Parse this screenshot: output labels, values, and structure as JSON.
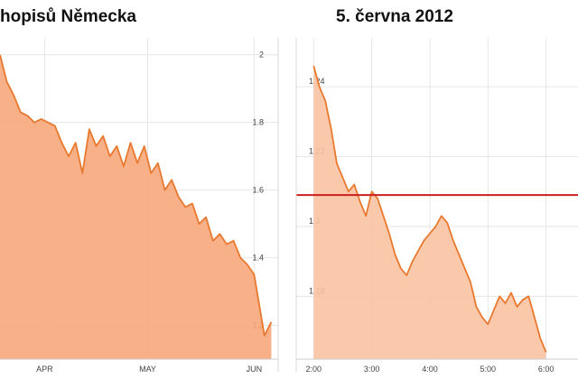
{
  "chart_data": [
    {
      "type": "area",
      "title": "hopisů Německa",
      "xlabel": "",
      "ylabel": "",
      "x_ticks": [
        "APR",
        "MAY",
        "JUN"
      ],
      "y_ticks": [
        "2",
        "1.8",
        "1.6",
        "1.4",
        "1.2"
      ],
      "ylim": [
        1.1,
        2.05
      ],
      "grid": true,
      "fill_color": "#f6a77a",
      "line_color": "#e8792f",
      "series": [
        {
          "x": [
            "2012-03-19",
            "2012-03-21",
            "2012-03-23",
            "2012-03-25",
            "2012-03-27",
            "2012-03-29",
            "2012-03-31",
            "2012-04-02",
            "2012-04-04",
            "2012-04-06",
            "2012-04-08",
            "2012-04-10",
            "2012-04-12",
            "2012-04-14",
            "2012-04-16",
            "2012-04-18",
            "2012-04-20",
            "2012-04-22",
            "2012-04-24",
            "2012-04-26",
            "2012-04-28",
            "2012-04-30",
            "2012-05-02",
            "2012-05-04",
            "2012-05-06",
            "2012-05-08",
            "2012-05-10",
            "2012-05-12",
            "2012-05-14",
            "2012-05-16",
            "2012-05-18",
            "2012-05-20",
            "2012-05-22",
            "2012-05-24",
            "2012-05-26",
            "2012-05-28",
            "2012-05-30",
            "2012-06-01",
            "2012-06-04",
            "2012-06-06"
          ],
          "values": [
            2.0,
            1.92,
            1.88,
            1.83,
            1.82,
            1.8,
            1.81,
            1.8,
            1.79,
            1.74,
            1.7,
            1.74,
            1.65,
            1.78,
            1.73,
            1.76,
            1.7,
            1.73,
            1.67,
            1.74,
            1.68,
            1.73,
            1.65,
            1.68,
            1.6,
            1.63,
            1.58,
            1.55,
            1.56,
            1.5,
            1.52,
            1.45,
            1.47,
            1.44,
            1.45,
            1.4,
            1.38,
            1.35,
            1.17,
            1.21
          ]
        }
      ]
    },
    {
      "type": "area",
      "title": "5. června 2012",
      "xlabel": "",
      "ylabel": "",
      "x_ticks": [
        "2:00",
        "3:00",
        "4:00",
        "5:00",
        "6:00"
      ],
      "y_ticks": [
        "1.24",
        "1.22",
        "1.2",
        "1.18"
      ],
      "ylim": [
        1.162,
        1.254
      ],
      "grid": true,
      "reference_line": 1.209,
      "reference_color": "#cc1f1f",
      "fill_color": "#f9c3a2",
      "line_color": "#e8792f",
      "series": [
        {
          "x": [
            "2:00",
            "2:06",
            "2:12",
            "2:18",
            "2:24",
            "2:30",
            "2:36",
            "2:42",
            "2:48",
            "2:54",
            "3:00",
            "3:06",
            "3:12",
            "3:18",
            "3:24",
            "3:30",
            "3:36",
            "3:42",
            "3:48",
            "3:54",
            "4:00",
            "4:06",
            "4:12",
            "4:18",
            "4:24",
            "4:30",
            "4:36",
            "4:42",
            "4:48",
            "4:54",
            "5:00",
            "5:06",
            "5:12",
            "5:18",
            "5:24",
            "5:30",
            "5:36",
            "5:42",
            "5:48",
            "5:54",
            "6:00"
          ],
          "values": [
            1.246,
            1.24,
            1.236,
            1.228,
            1.218,
            1.214,
            1.21,
            1.212,
            1.207,
            1.203,
            1.21,
            1.208,
            1.203,
            1.198,
            1.192,
            1.188,
            1.186,
            1.19,
            1.193,
            1.196,
            1.198,
            1.2,
            1.203,
            1.201,
            1.196,
            1.192,
            1.188,
            1.184,
            1.177,
            1.174,
            1.172,
            1.176,
            1.18,
            1.178,
            1.181,
            1.177,
            1.179,
            1.18,
            1.174,
            1.168,
            1.164
          ]
        }
      ]
    }
  ]
}
